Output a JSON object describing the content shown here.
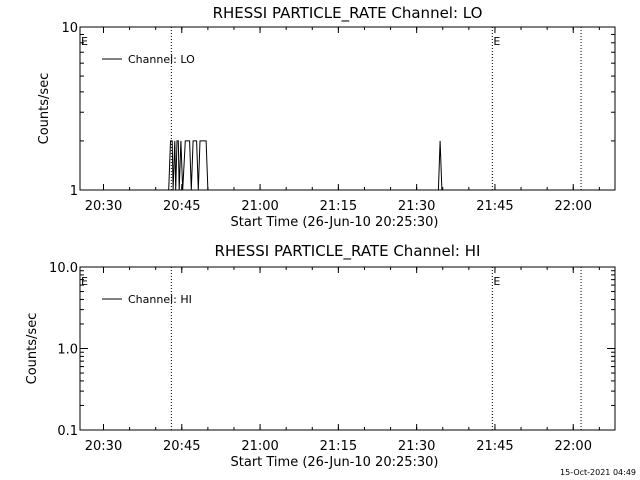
{
  "timestamp": "15-Oct-2021 04:49",
  "chart_data": [
    {
      "type": "line",
      "title": "RHESSI PARTICLE_RATE Channel: LO",
      "xlabel": "Start Time (26-Jun-10 20:25:30)",
      "ylabel": "Counts/sec",
      "y_scale": "log",
      "ylim": [
        1,
        10
      ],
      "yticks": [
        {
          "value": 1,
          "label": "1"
        },
        {
          "value": 10,
          "label": "10"
        }
      ],
      "xlim": [
        "20:25:30",
        "22:08:00"
      ],
      "xticks": [
        "20:30",
        "20:45",
        "21:00",
        "21:15",
        "21:30",
        "21:45",
        "22:00"
      ],
      "legend": {
        "entry": "Channel: LO",
        "placement": "top-left"
      },
      "markers": [
        {
          "time": "20:25:30",
          "label": "E"
        },
        {
          "time": "21:44:30",
          "label": "E"
        }
      ],
      "dotted_lines": [
        "20:43:00",
        "21:44:30",
        "22:01:30"
      ],
      "series": [
        {
          "name": "Channel: LO",
          "points": [
            [
              "20:25:30",
              1
            ],
            [
              "20:42:30",
              1
            ],
            [
              "20:42:50",
              2
            ],
            [
              "20:43:10",
              2
            ],
            [
              "20:43:20",
              1
            ],
            [
              "20:43:40",
              2
            ],
            [
              "20:43:50",
              1
            ],
            [
              "20:44:05",
              2
            ],
            [
              "20:44:20",
              2
            ],
            [
              "20:44:30",
              1
            ],
            [
              "20:44:50",
              2
            ],
            [
              "20:45:10",
              1
            ],
            [
              "20:45:40",
              2
            ],
            [
              "20:46:30",
              2
            ],
            [
              "20:46:50",
              1
            ],
            [
              "20:47:10",
              2
            ],
            [
              "20:47:50",
              2
            ],
            [
              "20:48:10",
              1
            ],
            [
              "20:48:30",
              2
            ],
            [
              "20:49:40",
              2
            ],
            [
              "20:50:00",
              1
            ],
            [
              "21:34:10",
              1
            ],
            [
              "21:34:30",
              2
            ],
            [
              "21:34:50",
              1
            ],
            [
              "22:08:00",
              1
            ]
          ]
        }
      ]
    },
    {
      "type": "line",
      "title": "RHESSI PARTICLE_RATE Channel: HI",
      "xlabel": "Start Time (26-Jun-10 20:25:30)",
      "ylabel": "Counts/sec",
      "y_scale": "log",
      "ylim": [
        0.1,
        10
      ],
      "yticks": [
        {
          "value": 0.1,
          "label": "0.1"
        },
        {
          "value": 1,
          "label": "1.0"
        },
        {
          "value": 10,
          "label": "10.0"
        }
      ],
      "xlim": [
        "20:25:30",
        "22:08:00"
      ],
      "xticks": [
        "20:30",
        "20:45",
        "21:00",
        "21:15",
        "21:30",
        "21:45",
        "22:00"
      ],
      "legend": {
        "entry": "Channel: HI",
        "placement": "top-left"
      },
      "markers": [
        {
          "time": "20:25:30",
          "label": "E"
        },
        {
          "time": "21:44:30",
          "label": "E"
        }
      ],
      "dotted_lines": [
        "20:43:00",
        "21:44:30",
        "22:01:30"
      ],
      "series": [
        {
          "name": "Channel: HI",
          "points": []
        }
      ]
    }
  ]
}
